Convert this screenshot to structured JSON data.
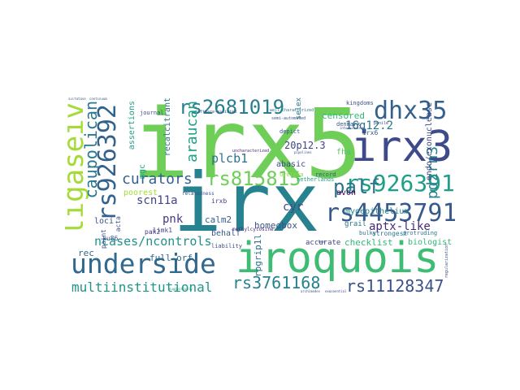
{
  "words": {
    "irx": {
      "text": "irx",
      "color": "#26828e"
    },
    "irx5": {
      "text": "irx5",
      "color": "#6ece58"
    },
    "iroquois": {
      "text": "iroquois",
      "color": "#3fbc73"
    },
    "underside": {
      "text": "underside",
      "color": "#31688e"
    },
    "irx3": {
      "text": "irx3",
      "color": "#3e4a89"
    },
    "rs926391": {
      "text": "rs926391",
      "color": "#1f9e89"
    },
    "rs4453791": {
      "text": "rs4453791",
      "color": "#38598c"
    },
    "rs815815": {
      "text": "rs815815",
      "color": "#6ece58"
    },
    "rs2681019": {
      "text": "rs2681019",
      "color": "#277f8e"
    },
    "dhx35": {
      "text": "dhx35",
      "color": "#34608d"
    },
    "ligaseiv": {
      "text": "ligaseiv",
      "color": "#a5db36"
    },
    "rs926392": {
      "text": "rs926392",
      "color": "#33638d"
    },
    "palf": {
      "text": "palf",
      "color": "#2c728e"
    },
    "rs3761168": {
      "text": "rs3761168",
      "color": "#26828e"
    },
    "rs11128347": {
      "text": "rs11128347",
      "color": "#3b518b"
    },
    "multiinstitutional": {
      "text": "multiinstitutional",
      "color": "#1f958b"
    },
    "ncases_ncontrols": {
      "text": "ncases/ncontrols",
      "color": "#21918c"
    },
    "curators": {
      "text": "curators",
      "color": "#33638d"
    },
    "caupolican": {
      "text": "caupolican",
      "color": "#2a788e"
    },
    "plcb1": {
      "text": "plcb1",
      "color": "#2c728e"
    },
    "araucan": {
      "text": "araucan",
      "color": "#1fa287"
    },
    "aptx_like": {
      "text": "aptx-like",
      "color": "#482878"
    },
    "pdzrn3": {
      "text": "pdzrn3",
      "color": "#277f8e"
    },
    "16q12_2": {
      "text": "16q12.2",
      "color": "#2a788e"
    },
    "scn11a": {
      "text": "scn11a",
      "color": "#414487"
    },
    "pnk": {
      "text": "pnk",
      "color": "#443983"
    },
    "cyr": {
      "text": "cyr",
      "color": "#3e4a89"
    },
    "calm2": {
      "text": "calm2",
      "color": "#355f8d"
    },
    "homeobox": {
      "text": "homeobox",
      "color": "#3b518b"
    },
    "checklist": {
      "text": "checklist",
      "color": "#35b779"
    },
    "biologist": {
      "text": "biologist",
      "color": "#35b779"
    },
    "rpgrip1l": {
      "text": "rpgrip1l",
      "color": "#2c728e"
    },
    "full_orf": {
      "text": "full-orf",
      "color": "#31688e"
    },
    "rec": {
      "text": "rec",
      "color": "#31688e"
    },
    "accurate": {
      "text": "accurate",
      "color": "#404688"
    },
    "censored": {
      "text": "censored",
      "color": "#35b779"
    },
    "endo_exonuclease": {
      "text": "endo/exonuclease",
      "color": "#3e4a89"
    },
    "myoepithelium": {
      "text": "myoepithelium",
      "color": "#25848e"
    },
    "20p12_3": {
      "text": "20p12.3",
      "color": "#414487"
    },
    "abasic": {
      "text": "abasic",
      "color": "#3e4a89"
    },
    "assertions": {
      "text": "assertions",
      "color": "#1f9e89"
    },
    "recalcitrant": {
      "text": "recalcitrant",
      "color": "#2c728e"
    },
    "mgc": {
      "text": "mgc",
      "color": "#1fa187"
    },
    "avon": {
      "text": "avon",
      "color": "#440154"
    },
    "fha": {
      "text": "fha",
      "color": "#54c568"
    },
    "grail": {
      "text": "grail",
      "color": "#2a788e"
    },
    "bulky": {
      "text": "bulky",
      "color": "#2d718e"
    },
    "strongest": {
      "text": "strongest",
      "color": "#2a788e"
    },
    "protruding": {
      "text": "protruding",
      "color": "#2a788e"
    },
    "poorest": {
      "text": "poorest",
      "color": "#a5db36"
    },
    "limk1": {
      "text": "limk1",
      "color": "#3e4a89"
    },
    "irxb": {
      "text": "irxb",
      "color": "#414487"
    },
    "behalf": {
      "text": "behalf",
      "color": "#38598c"
    },
    "loci": {
      "text": "loci",
      "color": "#3b518b"
    },
    "ku86": {
      "text": "ku86",
      "color": "#3b518b"
    },
    "pak2": {
      "text": "pak2",
      "color": "#443983"
    },
    "paint": {
      "text": "paint",
      "color": "#3b518b"
    },
    "acta": {
      "text": "acta",
      "color": "#3b518b"
    },
    "methylcytosine": {
      "text": "methylcytosine",
      "color": "#472d7b"
    },
    "selex": {
      "text": "selex",
      "color": "#2c728e"
    },
    "liability": {
      "text": "liability",
      "color": "#3e4a89"
    },
    "depict": {
      "text": "depict",
      "color": "#3b518b"
    },
    "record": {
      "text": "record",
      "color": "#3b518b"
    },
    "denmark": {
      "text": "denmark",
      "color": "#3b518b"
    },
    "irx6": {
      "text": "irx6",
      "color": "#3b518b"
    },
    "journal": {
      "text": "journal",
      "color": "#3b518b"
    },
    "kingdoms": {
      "text": "kingdoms",
      "color": "#3b518b"
    },
    "relatedness": {
      "text": "relatedness",
      "color": "#3b518b"
    },
    "urethra": {
      "text": "urethra",
      "color": "#8fd744"
    },
    "netherlands": {
      "text": "netherlands",
      "color": "#1fa187"
    },
    "well_characterized": {
      "text": "well-characterized",
      "color": "#2a788e"
    },
    "software_assisted": {
      "text": "software-assisted",
      "color": "#3b518b"
    },
    "semi_automated": {
      "text": "semi-automated",
      "color": "#3b518b"
    },
    "uncharacterized": {
      "text": "uncharacterized",
      "color": "#482878"
    },
    "interviewing": {
      "text": "interviewing",
      "color": "#3b518b"
    },
    "penile": {
      "text": "penile",
      "color": "#3b518b"
    },
    "pipelines": {
      "text": "pipelines",
      "color": "#3b518b"
    },
    "regularization": {
      "text": "regularization",
      "color": "#3b518b"
    },
    "archimedes": {
      "text": "archimedes",
      "color": "#3b518b"
    },
    "exponential": {
      "text": "exponential",
      "color": "#3b518b"
    },
    "hoc": {
      "text": "hoc",
      "color": "#3b518b"
    },
    "sulfatase": {
      "text": "sulfatase",
      "color": "#3b518b"
    },
    "continuum": {
      "text": "continuum",
      "color": "#3b518b"
    },
    "suggestively": {
      "text": "suggestively",
      "color": "#1fa187"
    }
  }
}
